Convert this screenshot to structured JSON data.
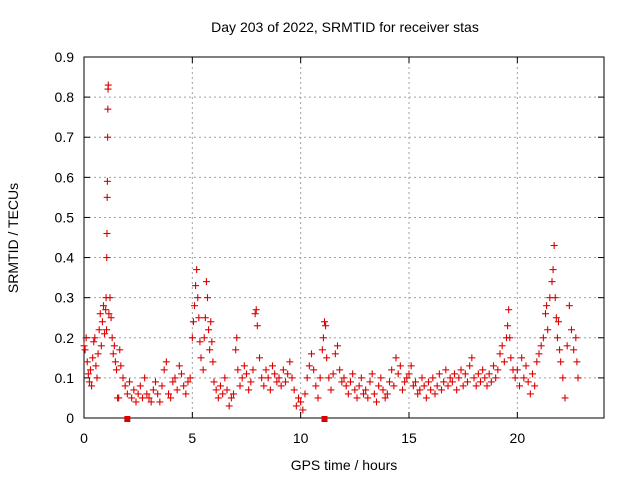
{
  "chart_data": {
    "type": "scatter",
    "title": "Day 203 of 2022, SRMTID for receiver stas",
    "xlabel": "GPS time / hours",
    "ylabel": "SRMTID / TECUs",
    "xlim": [
      0,
      24
    ],
    "ylim": [
      0,
      0.9
    ],
    "x_ticks": [
      0,
      5,
      10,
      15,
      20
    ],
    "x_tick_labels": [
      "0",
      "5",
      "10",
      "15",
      "20"
    ],
    "y_ticks": [
      0,
      0.1,
      0.2,
      0.3,
      0.4,
      0.5,
      0.6,
      0.7,
      0.8,
      0.9
    ],
    "y_tick_labels": [
      "0",
      "0.1",
      "0.2",
      "0.3",
      "0.4",
      "0.5",
      "0.6",
      "0.7",
      "0.8",
      "0.9"
    ],
    "grid": true,
    "marker": "+",
    "color": "#dd0000",
    "series": [
      {
        "name": "SRMTID",
        "points": [
          [
            0.0,
            0.18
          ],
          [
            0.05,
            0.17
          ],
          [
            0.1,
            0.2
          ],
          [
            0.15,
            0.14
          ],
          [
            0.2,
            0.11
          ],
          [
            0.25,
            0.09
          ],
          [
            0.3,
            0.12
          ],
          [
            0.35,
            0.08
          ],
          [
            0.4,
            0.15
          ],
          [
            0.45,
            0.19
          ],
          [
            0.5,
            0.2
          ],
          [
            0.55,
            0.13
          ],
          [
            0.6,
            0.1
          ],
          [
            0.65,
            0.16
          ],
          [
            0.7,
            0.22
          ],
          [
            0.75,
            0.26
          ],
          [
            0.8,
            0.18
          ],
          [
            0.85,
            0.24
          ],
          [
            0.9,
            0.28
          ],
          [
            0.95,
            0.21
          ],
          [
            1.0,
            0.27
          ],
          [
            1.02,
            0.3
          ],
          [
            1.04,
            0.22
          ],
          [
            1.05,
            0.4
          ],
          [
            1.06,
            0.46
          ],
          [
            1.07,
            0.55
          ],
          [
            1.08,
            0.59
          ],
          [
            1.09,
            0.7
          ],
          [
            1.1,
            0.77
          ],
          [
            1.11,
            0.82
          ],
          [
            1.12,
            0.83
          ],
          [
            1.15,
            0.26
          ],
          [
            1.2,
            0.3
          ],
          [
            1.25,
            0.25
          ],
          [
            1.3,
            0.2
          ],
          [
            1.35,
            0.16
          ],
          [
            1.4,
            0.18
          ],
          [
            1.45,
            0.14
          ],
          [
            1.5,
            0.12
          ],
          [
            1.55,
            0.05
          ],
          [
            1.6,
            0.05
          ],
          [
            1.65,
            0.17
          ],
          [
            1.7,
            0.13
          ],
          [
            1.8,
            0.1
          ],
          [
            1.9,
            0.08
          ],
          [
            2.0,
            0.06
          ],
          [
            2.1,
            0.09
          ],
          [
            2.2,
            0.05
          ],
          [
            2.3,
            0.07
          ],
          [
            2.4,
            0.04
          ],
          [
            2.5,
            0.06
          ],
          [
            2.6,
            0.08
          ],
          [
            2.7,
            0.05
          ],
          [
            2.8,
            0.1
          ],
          [
            2.9,
            0.06
          ],
          [
            3.0,
            0.05
          ],
          [
            3.1,
            0.04
          ],
          [
            3.2,
            0.07
          ],
          [
            3.3,
            0.09
          ],
          [
            3.4,
            0.06
          ],
          [
            3.5,
            0.04
          ],
          [
            3.6,
            0.08
          ],
          [
            3.7,
            0.12
          ],
          [
            3.8,
            0.14
          ],
          [
            3.9,
            0.06
          ],
          [
            4.0,
            0.05
          ],
          [
            4.1,
            0.09
          ],
          [
            4.2,
            0.1
          ],
          [
            4.3,
            0.07
          ],
          [
            4.4,
            0.13
          ],
          [
            4.5,
            0.11
          ],
          [
            4.6,
            0.08
          ],
          [
            4.7,
            0.06
          ],
          [
            4.8,
            0.09
          ],
          [
            4.9,
            0.1
          ],
          [
            5.0,
            0.2
          ],
          [
            5.05,
            0.24
          ],
          [
            5.1,
            0.28
          ],
          [
            5.15,
            0.33
          ],
          [
            5.2,
            0.37
          ],
          [
            5.25,
            0.3
          ],
          [
            5.3,
            0.25
          ],
          [
            5.35,
            0.19
          ],
          [
            5.4,
            0.15
          ],
          [
            5.5,
            0.12
          ],
          [
            5.55,
            0.2
          ],
          [
            5.6,
            0.25
          ],
          [
            5.65,
            0.34
          ],
          [
            5.7,
            0.3
          ],
          [
            5.75,
            0.22
          ],
          [
            5.8,
            0.17
          ],
          [
            5.85,
            0.24
          ],
          [
            5.9,
            0.19
          ],
          [
            5.95,
            0.14
          ],
          [
            6.0,
            0.09
          ],
          [
            6.1,
            0.07
          ],
          [
            6.2,
            0.05
          ],
          [
            6.3,
            0.08
          ],
          [
            6.4,
            0.06
          ],
          [
            6.5,
            0.1
          ],
          [
            6.6,
            0.07
          ],
          [
            6.7,
            0.03
          ],
          [
            6.8,
            0.05
          ],
          [
            6.9,
            0.06
          ],
          [
            7.0,
            0.17
          ],
          [
            7.05,
            0.2
          ],
          [
            7.1,
            0.12
          ],
          [
            7.2,
            0.08
          ],
          [
            7.3,
            0.1
          ],
          [
            7.4,
            0.13
          ],
          [
            7.5,
            0.11
          ],
          [
            7.6,
            0.07
          ],
          [
            7.7,
            0.09
          ],
          [
            7.8,
            0.12
          ],
          [
            7.9,
            0.26
          ],
          [
            7.95,
            0.27
          ],
          [
            8.0,
            0.23
          ],
          [
            8.1,
            0.15
          ],
          [
            8.2,
            0.1
          ],
          [
            8.3,
            0.08
          ],
          [
            8.4,
            0.12
          ],
          [
            8.5,
            0.1
          ],
          [
            8.6,
            0.07
          ],
          [
            8.7,
            0.13
          ],
          [
            8.8,
            0.11
          ],
          [
            8.9,
            0.09
          ],
          [
            9.0,
            0.1
          ],
          [
            9.1,
            0.08
          ],
          [
            9.2,
            0.12
          ],
          [
            9.3,
            0.09
          ],
          [
            9.4,
            0.11
          ],
          [
            9.5,
            0.14
          ],
          [
            9.6,
            0.1
          ],
          [
            9.7,
            0.07
          ],
          [
            9.8,
            0.03
          ],
          [
            9.9,
            0.05
          ],
          [
            10.0,
            0.04
          ],
          [
            10.1,
            0.02
          ],
          [
            10.2,
            0.06
          ],
          [
            10.3,
            0.1
          ],
          [
            10.4,
            0.13
          ],
          [
            10.5,
            0.16
          ],
          [
            10.6,
            0.12
          ],
          [
            10.7,
            0.08
          ],
          [
            10.8,
            0.05
          ],
          [
            10.9,
            0.1
          ],
          [
            11.0,
            0.17
          ],
          [
            11.05,
            0.2
          ],
          [
            11.1,
            0.24
          ],
          [
            11.15,
            0.23
          ],
          [
            11.2,
            0.15
          ],
          [
            11.3,
            0.1
          ],
          [
            11.4,
            0.07
          ],
          [
            11.5,
            0.11
          ],
          [
            11.6,
            0.16
          ],
          [
            11.7,
            0.18
          ],
          [
            11.8,
            0.12
          ],
          [
            11.9,
            0.09
          ],
          [
            12.0,
            0.1
          ],
          [
            12.1,
            0.08
          ],
          [
            12.2,
            0.06
          ],
          [
            12.3,
            0.09
          ],
          [
            12.4,
            0.11
          ],
          [
            12.5,
            0.07
          ],
          [
            12.6,
            0.05
          ],
          [
            12.7,
            0.08
          ],
          [
            12.8,
            0.1
          ],
          [
            12.9,
            0.06
          ],
          [
            13.0,
            0.07
          ],
          [
            13.1,
            0.05
          ],
          [
            13.2,
            0.09
          ],
          [
            13.3,
            0.11
          ],
          [
            13.4,
            0.06
          ],
          [
            13.5,
            0.04
          ],
          [
            13.6,
            0.08
          ],
          [
            13.7,
            0.1
          ],
          [
            13.8,
            0.07
          ],
          [
            13.9,
            0.05
          ],
          [
            14.0,
            0.06
          ],
          [
            14.1,
            0.09
          ],
          [
            14.2,
            0.12
          ],
          [
            14.3,
            0.08
          ],
          [
            14.4,
            0.15
          ],
          [
            14.5,
            0.11
          ],
          [
            14.6,
            0.13
          ],
          [
            14.7,
            0.07
          ],
          [
            14.8,
            0.09
          ],
          [
            14.9,
            0.1
          ],
          [
            15.0,
            0.11
          ],
          [
            15.1,
            0.13
          ],
          [
            15.2,
            0.08
          ],
          [
            15.3,
            0.09
          ],
          [
            15.4,
            0.06
          ],
          [
            15.5,
            0.07
          ],
          [
            15.6,
            0.1
          ],
          [
            15.7,
            0.08
          ],
          [
            15.8,
            0.05
          ],
          [
            15.9,
            0.09
          ],
          [
            16.0,
            0.07
          ],
          [
            16.1,
            0.1
          ],
          [
            16.2,
            0.06
          ],
          [
            16.3,
            0.08
          ],
          [
            16.4,
            0.11
          ],
          [
            16.5,
            0.07
          ],
          [
            16.6,
            0.09
          ],
          [
            16.7,
            0.12
          ],
          [
            16.8,
            0.08
          ],
          [
            16.9,
            0.1
          ],
          [
            17.0,
            0.09
          ],
          [
            17.1,
            0.11
          ],
          [
            17.2,
            0.07
          ],
          [
            17.3,
            0.1
          ],
          [
            17.4,
            0.12
          ],
          [
            17.5,
            0.08
          ],
          [
            17.6,
            0.11
          ],
          [
            17.7,
            0.09
          ],
          [
            17.8,
            0.13
          ],
          [
            17.9,
            0.15
          ],
          [
            18.0,
            0.1
          ],
          [
            18.1,
            0.08
          ],
          [
            18.2,
            0.11
          ],
          [
            18.3,
            0.09
          ],
          [
            18.4,
            0.12
          ],
          [
            18.5,
            0.1
          ],
          [
            18.6,
            0.08
          ],
          [
            18.7,
            0.11
          ],
          [
            18.8,
            0.09
          ],
          [
            18.9,
            0.13
          ],
          [
            19.0,
            0.1
          ],
          [
            19.1,
            0.12
          ],
          [
            19.2,
            0.16
          ],
          [
            19.3,
            0.18
          ],
          [
            19.4,
            0.14
          ],
          [
            19.5,
            0.2
          ],
          [
            19.55,
            0.23
          ],
          [
            19.6,
            0.27
          ],
          [
            19.65,
            0.2
          ],
          [
            19.7,
            0.15
          ],
          [
            19.8,
            0.12
          ],
          [
            19.9,
            0.1
          ],
          [
            20.0,
            0.12
          ],
          [
            20.1,
            0.08
          ],
          [
            20.2,
            0.15
          ],
          [
            20.3,
            0.1
          ],
          [
            20.4,
            0.13
          ],
          [
            20.5,
            0.09
          ],
          [
            20.6,
            0.06
          ],
          [
            20.7,
            0.11
          ],
          [
            20.8,
            0.08
          ],
          [
            20.9,
            0.14
          ],
          [
            21.0,
            0.16
          ],
          [
            21.1,
            0.18
          ],
          [
            21.2,
            0.2
          ],
          [
            21.3,
            0.26
          ],
          [
            21.35,
            0.28
          ],
          [
            21.4,
            0.22
          ],
          [
            21.5,
            0.3
          ],
          [
            21.6,
            0.34
          ],
          [
            21.65,
            0.37
          ],
          [
            21.7,
            0.43
          ],
          [
            21.75,
            0.3
          ],
          [
            21.8,
            0.25
          ],
          [
            21.85,
            0.2
          ],
          [
            21.9,
            0.24
          ],
          [
            21.95,
            0.17
          ],
          [
            22.0,
            0.14
          ],
          [
            22.1,
            0.1
          ],
          [
            22.2,
            0.05
          ],
          [
            22.3,
            0.18
          ],
          [
            22.4,
            0.28
          ],
          [
            22.5,
            0.22
          ],
          [
            22.6,
            0.17
          ],
          [
            22.7,
            0.2
          ],
          [
            22.75,
            0.14
          ],
          [
            22.8,
            0.1
          ]
        ]
      }
    ],
    "gap_markers": [
      {
        "x": 2.0,
        "y": 0
      },
      {
        "x": 11.1,
        "y": 0
      }
    ]
  }
}
